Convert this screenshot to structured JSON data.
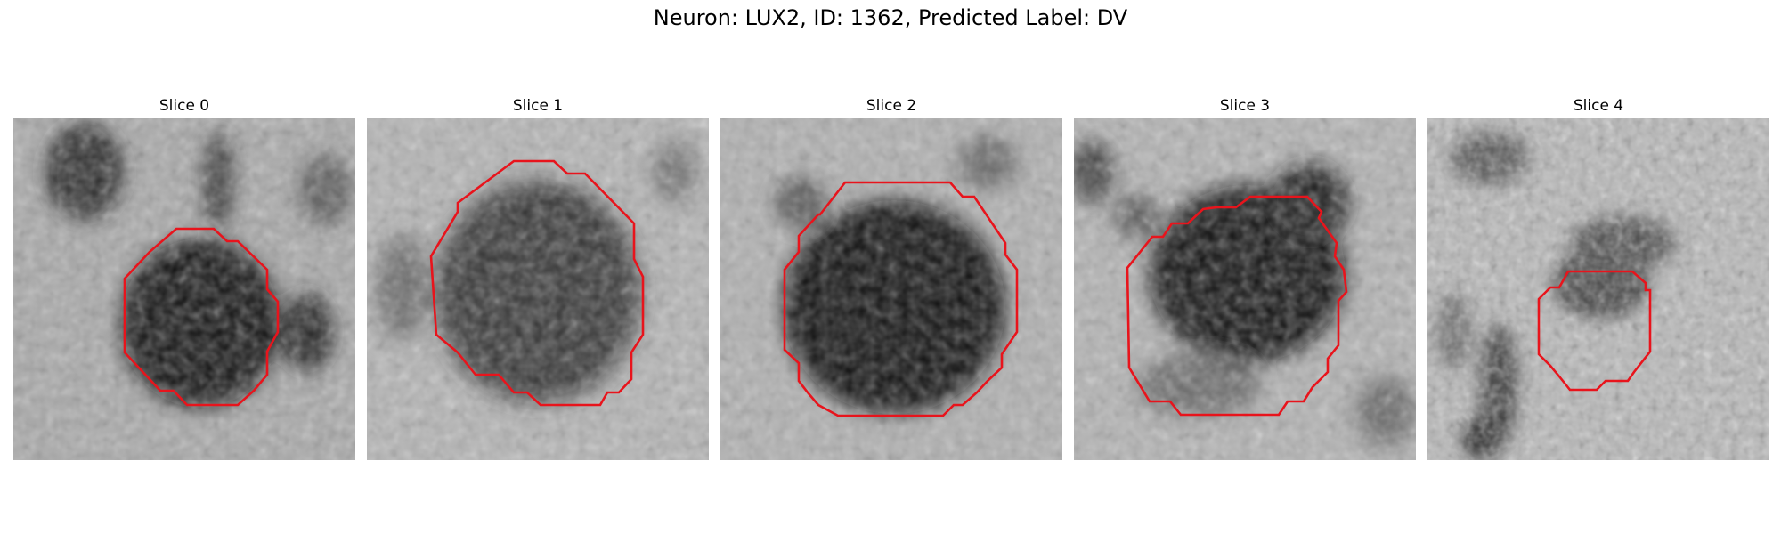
{
  "figure": {
    "title": "Neuron: LUX2, ID: 1362, Predicted Label: DV"
  },
  "panels": [
    {
      "title": "Slice 0",
      "contour_color": "#e8141c"
    },
    {
      "title": "Slice 1",
      "contour_color": "#e8141c"
    },
    {
      "title": "Slice 2",
      "contour_color": "#e8141c"
    },
    {
      "title": "Slice 3",
      "contour_color": "#e8141c"
    },
    {
      "title": "Slice 4",
      "contour_color": "#e8141c"
    }
  ]
}
